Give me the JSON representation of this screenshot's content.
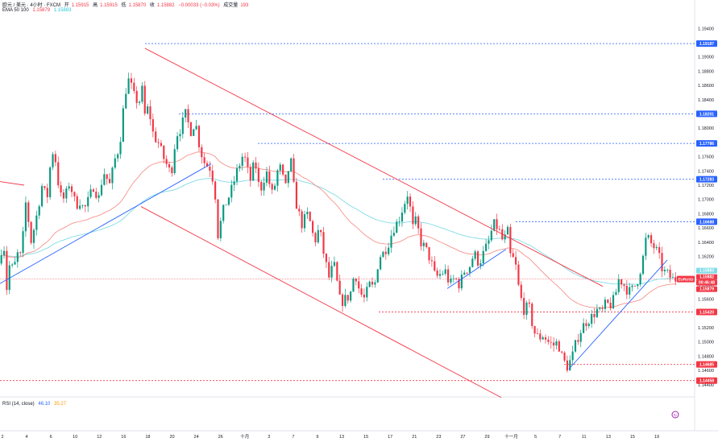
{
  "header": {
    "symbol": "欧元 / 美元 · 4小时 · FXCM",
    "open_label": "开",
    "open": "1.15915",
    "high_label": "高",
    "high": "1.15915",
    "low_label": "低",
    "low": "1.15870",
    "close_label": "收",
    "close": "1.15882",
    "change": "−0.00033 (−0.03%)",
    "volume_label": "成交量",
    "volume": "193",
    "ema_label": "EMA 50 100",
    "ema50": "1.15879",
    "ema100": "1.15883"
  },
  "rsi": {
    "label": "RSI (14, close)",
    "value": "46.10",
    "ma_value": "35.27"
  },
  "colors": {
    "up": "#089981",
    "down": "#f23645",
    "ema50": "#f7928a",
    "ema100": "#7fdce6",
    "resistance": "#2962ff",
    "support": "#f23645",
    "channel": "#f23645",
    "trend": "#2962ff"
  },
  "chart_data": {
    "type": "candlestick",
    "symbol": "EURUSD",
    "ylim": [
      1.1424,
      1.1955
    ],
    "y_ticks": [
      "1.19400",
      "1.19000",
      "1.18800",
      "1.18600",
      "1.18400",
      "1.18200",
      "1.18000",
      "1.17800",
      "1.17600",
      "1.17400",
      "1.17200",
      "1.17000",
      "1.16800",
      "1.16600",
      "1.16400",
      "1.16200",
      "1.16000",
      "1.15800",
      "1.15600",
      "1.15400",
      "1.15200",
      "1.15000",
      "1.14800",
      "1.14600",
      "1.14400"
    ],
    "x_ticks": [
      "2",
      "4",
      "6",
      "10",
      "12",
      "16",
      "18",
      "20",
      "24",
      "26",
      "十月",
      "3",
      "7",
      "9",
      "13",
      "15",
      "17",
      "21",
      "23",
      "27",
      "29",
      "十一月",
      "5",
      "7",
      "11",
      "13",
      "15",
      "19"
    ],
    "price_levels": [
      {
        "label": "1.19187",
        "color": "blue"
      },
      {
        "label": "1.18201",
        "color": "blue"
      },
      {
        "label": "1.17786",
        "color": "blue"
      },
      {
        "label": "1.17283",
        "color": "blue"
      },
      {
        "label": "1.16688",
        "color": "blue"
      },
      {
        "label": "1.15420",
        "color": "red"
      },
      {
        "label": "1.14685",
        "color": "red"
      },
      {
        "label": "1.14458",
        "color": "red"
      }
    ],
    "last_price": {
      "ticker": "EURUSD",
      "price": "1.15882",
      "countdown": "00:46:48"
    },
    "ema50_value": "1.15879",
    "ema100_value": "1.15883",
    "ema100_tag": "1.15883",
    "grid": false,
    "waypoints": [
      [
        0,
        1.161
      ],
      [
        6,
        1.1645
      ],
      [
        10,
        1.1575
      ],
      [
        14,
        1.1612
      ],
      [
        18,
        1.16
      ],
      [
        24,
        1.1625
      ],
      [
        28,
        1.1618
      ],
      [
        34,
        1.17
      ],
      [
        40,
        1.164
      ],
      [
        46,
        1.167
      ],
      [
        54,
        1.172
      ],
      [
        60,
        1.17
      ],
      [
        66,
        1.177
      ],
      [
        70,
        1.176
      ],
      [
        76,
        1.1705
      ],
      [
        82,
        1.17
      ],
      [
        88,
        1.1725
      ],
      [
        96,
        1.169
      ],
      [
        100,
        1.17
      ],
      [
        106,
        1.1685
      ],
      [
        112,
        1.17
      ],
      [
        118,
        1.172
      ],
      [
        124,
        1.17
      ],
      [
        130,
        1.174
      ],
      [
        138,
        1.172
      ],
      [
        144,
        1.1755
      ],
      [
        150,
        1.1775
      ],
      [
        156,
        1.184
      ],
      [
        160,
        1.187
      ],
      [
        164,
        1.186
      ],
      [
        168,
        1.1845
      ],
      [
        174,
        1.1835
      ],
      [
        178,
        1.1855
      ],
      [
        180,
        1.1815
      ],
      [
        186,
        1.183
      ],
      [
        192,
        1.179
      ],
      [
        198,
        1.178
      ],
      [
        204,
        1.176
      ],
      [
        210,
        1.1745
      ],
      [
        214,
        1.1735
      ],
      [
        220,
        1.179
      ],
      [
        226,
        1.18
      ],
      [
        232,
        1.182
      ],
      [
        238,
        1.1795
      ],
      [
        244,
        1.181
      ],
      [
        250,
        1.177
      ],
      [
        256,
        1.175
      ],
      [
        262,
        1.1745
      ],
      [
        268,
        1.172
      ],
      [
        272,
        1.165
      ],
      [
        276,
        1.167
      ],
      [
        280,
        1.169
      ],
      [
        288,
        1.171
      ],
      [
        296,
        1.174
      ],
      [
        304,
        1.1765
      ],
      [
        312,
        1.1725
      ],
      [
        318,
        1.1755
      ],
      [
        324,
        1.171
      ],
      [
        332,
        1.174
      ],
      [
        340,
        1.1705
      ],
      [
        348,
        1.175
      ],
      [
        356,
        1.1715
      ],
      [
        362,
        1.176
      ],
      [
        368,
        1.17
      ],
      [
        376,
        1.1665
      ],
      [
        384,
        1.168
      ],
      [
        392,
        1.164
      ],
      [
        398,
        1.166
      ],
      [
        404,
        1.162
      ],
      [
        410,
        1.159
      ],
      [
        416,
        1.161
      ],
      [
        424,
        1.1555
      ],
      [
        430,
        1.156
      ],
      [
        436,
        1.1565
      ],
      [
        442,
        1.16
      ],
      [
        448,
        1.157
      ],
      [
        454,
        1.156
      ],
      [
        460,
        1.158
      ],
      [
        466,
        1.1575
      ],
      [
        472,
        1.162
      ],
      [
        478,
        1.1625
      ],
      [
        484,
        1.164
      ],
      [
        490,
        1.166
      ],
      [
        496,
        1.167
      ],
      [
        502,
        1.169
      ],
      [
        508,
        1.171
      ],
      [
        514,
        1.166
      ],
      [
        518,
        1.167
      ],
      [
        524,
        1.164
      ],
      [
        530,
        1.163
      ],
      [
        536,
        1.1615
      ],
      [
        542,
        1.159
      ],
      [
        548,
        1.1595
      ],
      [
        554,
        1.16
      ],
      [
        560,
        1.158
      ],
      [
        566,
        1.159
      ],
      [
        572,
        1.158
      ],
      [
        578,
        1.16
      ],
      [
        584,
        1.1605
      ],
      [
        590,
        1.1625
      ],
      [
        596,
        1.161
      ],
      [
        602,
        1.1625
      ],
      [
        608,
        1.164
      ],
      [
        614,
        1.1665
      ],
      [
        620,
        1.166
      ],
      [
        626,
        1.164
      ],
      [
        632,
        1.1655
      ],
      [
        636,
        1.161
      ],
      [
        640,
        1.162
      ],
      [
        646,
        1.157
      ],
      [
        652,
        1.1545
      ],
      [
        658,
        1.155
      ],
      [
        664,
        1.1515
      ],
      [
        670,
        1.1505
      ],
      [
        676,
        1.151
      ],
      [
        682,
        1.15
      ],
      [
        688,
        1.1495
      ],
      [
        694,
        1.15
      ],
      [
        700,
        1.1475
      ],
      [
        706,
        1.1465
      ],
      [
        712,
        1.148
      ],
      [
        718,
        1.1505
      ],
      [
        724,
        1.152
      ],
      [
        730,
        1.153
      ],
      [
        736,
        1.1535
      ],
      [
        742,
        1.1545
      ],
      [
        748,
        1.154
      ],
      [
        754,
        1.1555
      ],
      [
        758,
        1.155
      ],
      [
        764,
        1.156
      ],
      [
        770,
        1.159
      ],
      [
        776,
        1.158
      ],
      [
        782,
        1.157
      ],
      [
        788,
        1.1575
      ],
      [
        794,
        1.159
      ],
      [
        800,
        1.162
      ],
      [
        804,
        1.165
      ],
      [
        808,
        1.164
      ],
      [
        812,
        1.1635
      ],
      [
        818,
        1.1625
      ],
      [
        824,
        1.16
      ],
      [
        830,
        1.1595
      ],
      [
        836,
        1.1588
      ]
    ],
    "drawings": [
      {
        "name": "channel-upper",
        "points": [
          [
            180,
            1.1912
          ],
          [
            748,
            1.1578
          ]
        ]
      },
      {
        "name": "channel-lower",
        "points": [
          [
            175,
            1.169
          ],
          [
            622,
            1.1422
          ]
        ]
      },
      {
        "name": "stub-line",
        "points": [
          [
            0,
            1.1725
          ],
          [
            30,
            1.172
          ]
        ]
      },
      {
        "name": "trend-1",
        "points": [
          [
            0,
            1.1582
          ],
          [
            262,
            1.175
          ]
        ]
      },
      {
        "name": "trend-2",
        "points": [
          [
            555,
            1.1575
          ],
          [
            628,
            1.163
          ]
        ]
      },
      {
        "name": "trend-3",
        "points": [
          [
            706,
            1.1462
          ],
          [
            828,
            1.1615
          ]
        ]
      }
    ]
  }
}
